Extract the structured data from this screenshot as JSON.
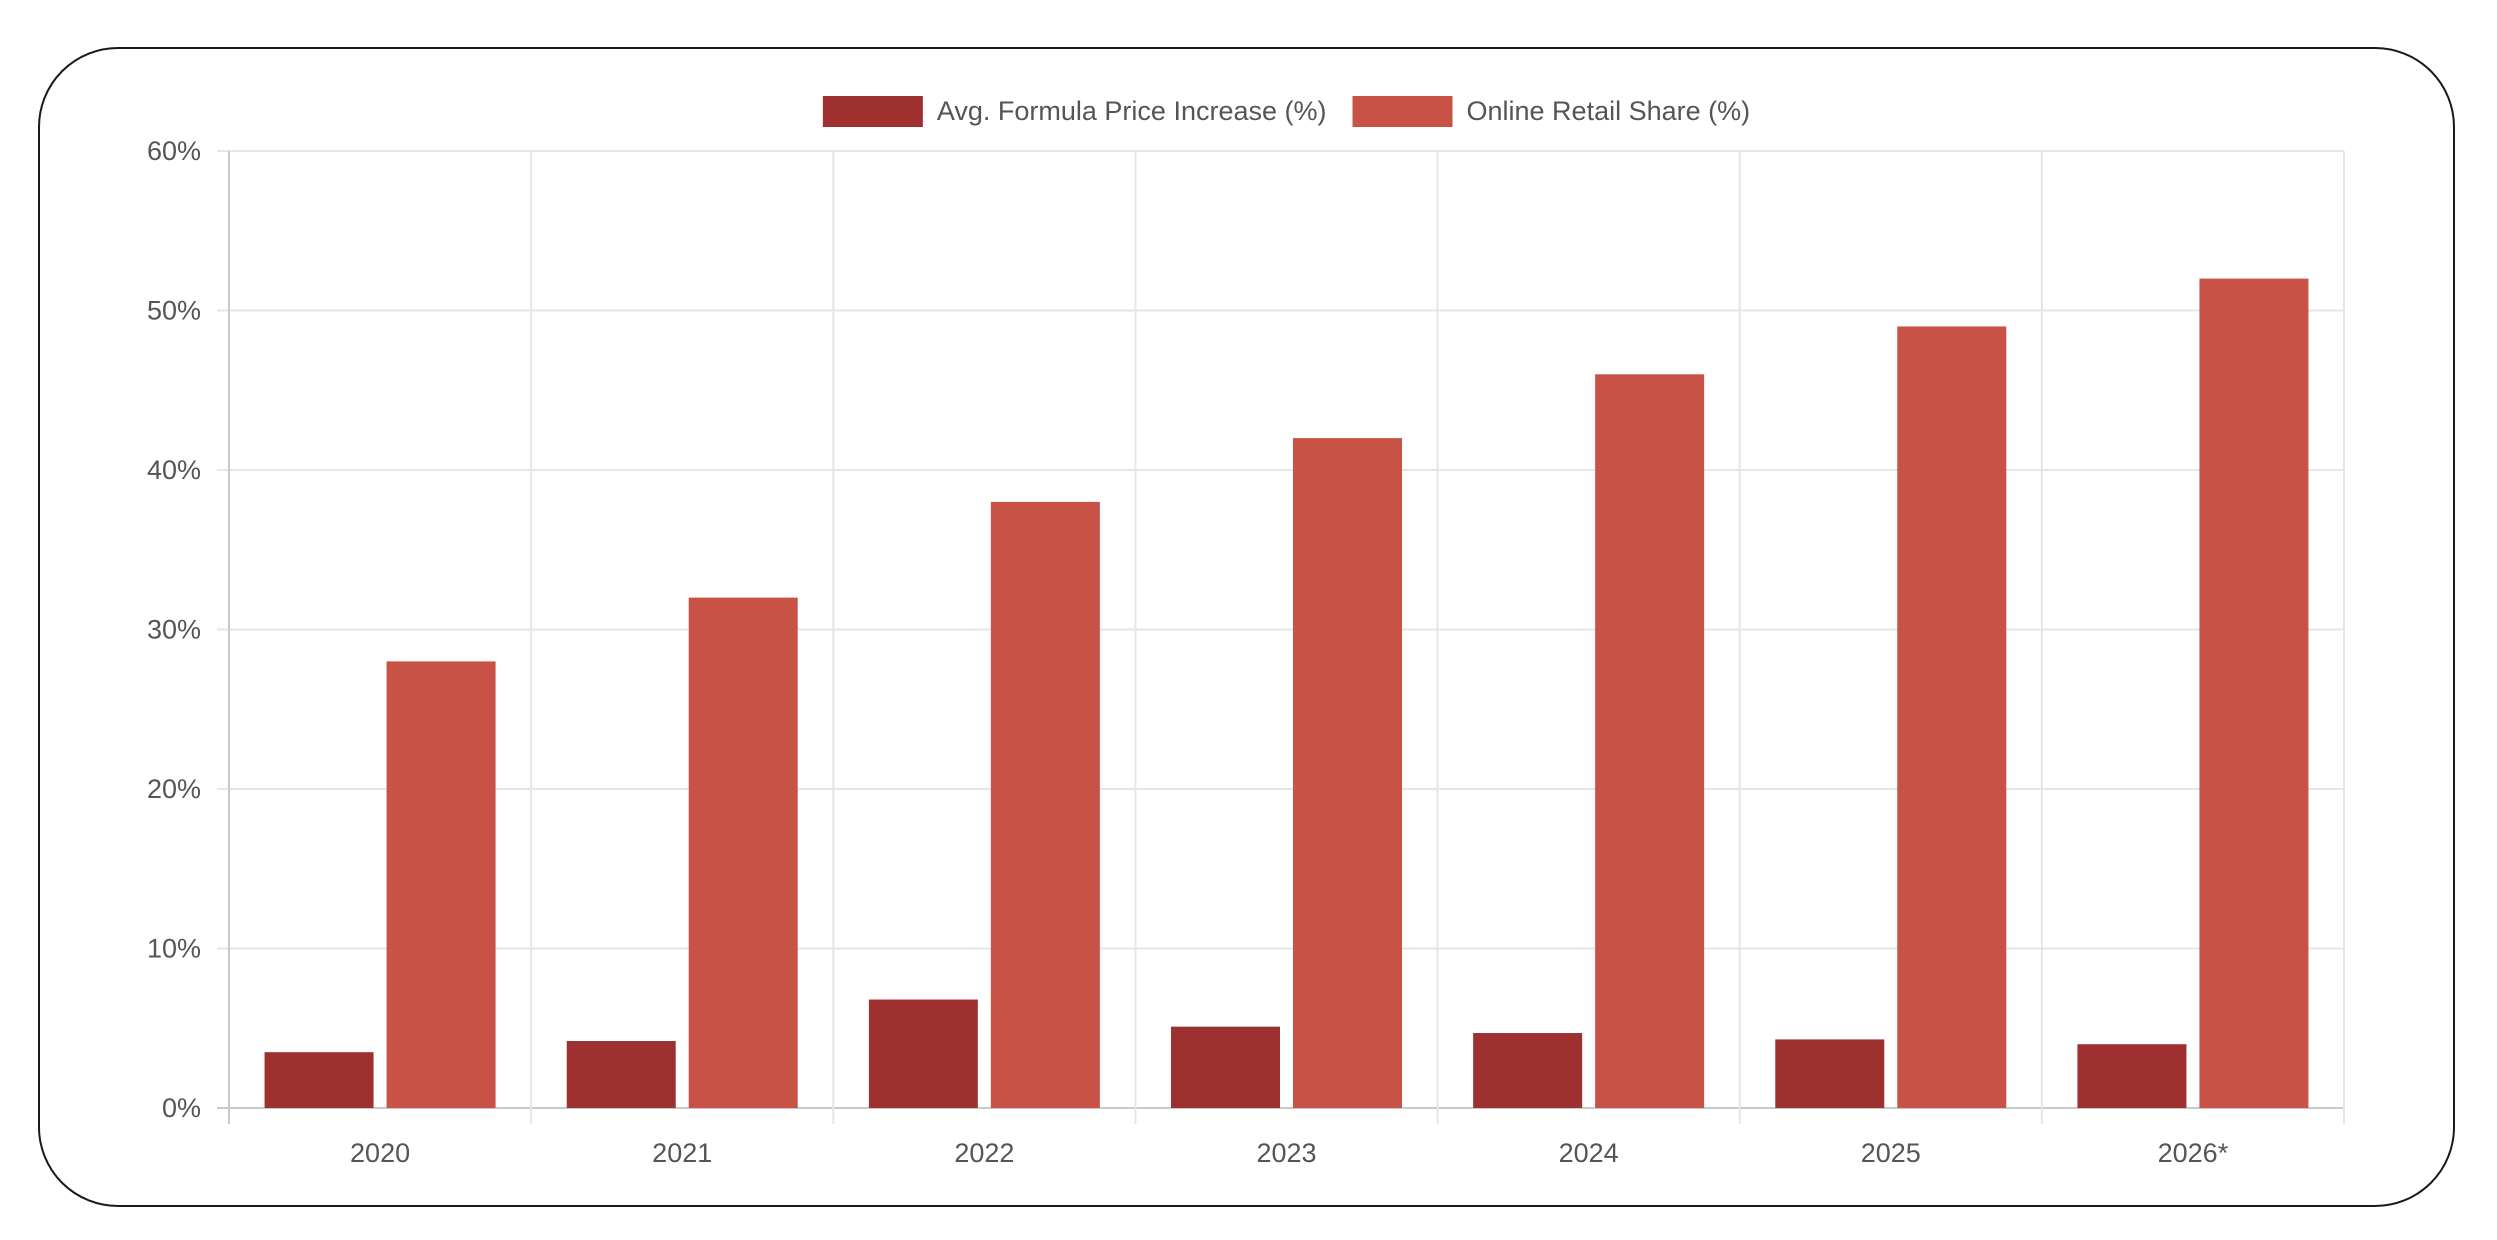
{
  "chart_data": {
    "type": "bar",
    "categories": [
      "2020",
      "2021",
      "2022",
      "2023",
      "2024",
      "2025",
      "2026*"
    ],
    "series": [
      {
        "name": "Avg. Formula Price Increase (%)",
        "color": "#9e3030",
        "values": [
          3.5,
          4.2,
          6.8,
          5.1,
          4.7,
          4.3,
          4.0
        ]
      },
      {
        "name": "Online Retail Share (%)",
        "color": "#c85246",
        "values": [
          28,
          32,
          38,
          42,
          46,
          49,
          52
        ]
      }
    ],
    "ylim": [
      0,
      60
    ],
    "yticks": [
      0,
      10,
      20,
      30,
      40,
      50,
      60
    ],
    "ytick_suffix": "%",
    "grid": true,
    "legend_position": "top-center"
  }
}
